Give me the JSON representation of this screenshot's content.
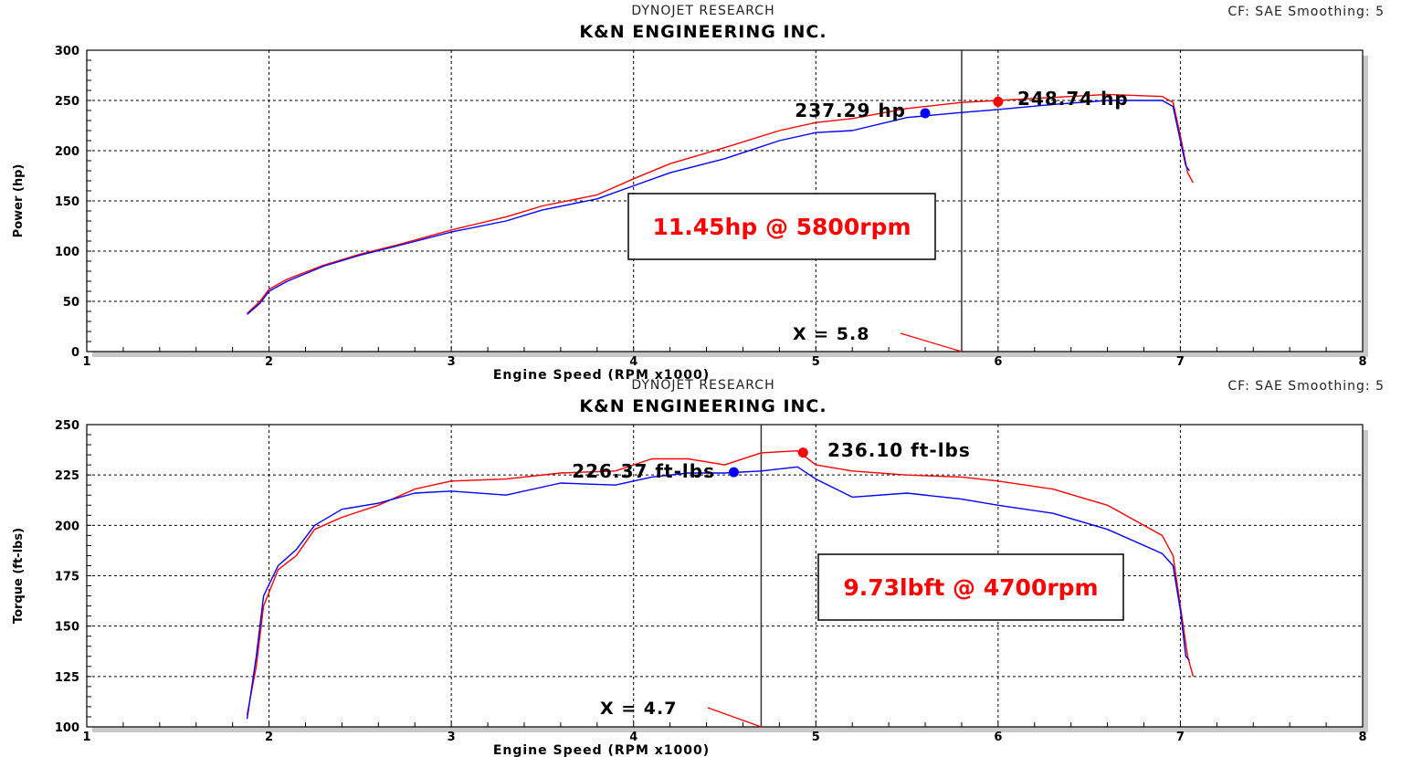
{
  "chart_data": [
    {
      "type": "line",
      "header": "DYNOJET RESEARCH",
      "title": "K&N ENGINEERING INC.",
      "settings_text": "CF: SAE   Smoothing: 5",
      "xlabel": "Engine Speed (RPM x1000)",
      "ylabel": "Power (hp)",
      "xlim": [
        1,
        8
      ],
      "ylim": [
        0,
        300
      ],
      "xticks": [
        "1",
        "2",
        "3",
        "4",
        "5",
        "6",
        "7",
        "8"
      ],
      "yticks": [
        "0",
        "50",
        "100",
        "150",
        "200",
        "250",
        "300"
      ],
      "grid": true,
      "series": [
        {
          "color": "#ff0000",
          "points": [
            [
              1.88,
              38
            ],
            [
              1.95,
              50
            ],
            [
              2.0,
              62
            ],
            [
              2.1,
              72
            ],
            [
              2.3,
              86
            ],
            [
              2.5,
              97
            ],
            [
              2.7,
              106
            ],
            [
              3.0,
              121
            ],
            [
              3.3,
              134
            ],
            [
              3.5,
              145
            ],
            [
              3.8,
              156
            ],
            [
              4.0,
              172
            ],
            [
              4.2,
              187
            ],
            [
              4.5,
              203
            ],
            [
              4.8,
              220
            ],
            [
              5.0,
              228
            ],
            [
              5.2,
              232
            ],
            [
              5.5,
              242
            ],
            [
              5.8,
              248
            ],
            [
              6.0,
              250
            ],
            [
              6.3,
              253
            ],
            [
              6.6,
              256
            ],
            [
              6.9,
              254
            ],
            [
              6.96,
              248
            ],
            [
              7.0,
              215
            ],
            [
              7.04,
              178
            ],
            [
              7.07,
              168
            ]
          ]
        },
        {
          "color": "#0000ff",
          "points": [
            [
              1.88,
              37
            ],
            [
              1.95,
              48
            ],
            [
              2.0,
              60
            ],
            [
              2.1,
              70
            ],
            [
              2.3,
              85
            ],
            [
              2.5,
              96
            ],
            [
              2.7,
              105
            ],
            [
              3.0,
              119
            ],
            [
              3.3,
              130
            ],
            [
              3.5,
              141
            ],
            [
              3.8,
              152
            ],
            [
              4.0,
              165
            ],
            [
              4.2,
              178
            ],
            [
              4.5,
              192
            ],
            [
              4.8,
              210
            ],
            [
              5.0,
              218
            ],
            [
              5.2,
              220
            ],
            [
              5.5,
              233
            ],
            [
              5.8,
              238
            ],
            [
              6.0,
              241
            ],
            [
              6.3,
              246
            ],
            [
              6.6,
              250
            ],
            [
              6.9,
              250
            ],
            [
              6.96,
              244
            ],
            [
              7.0,
              210
            ],
            [
              7.03,
              185
            ],
            [
              7.05,
              180
            ]
          ]
        }
      ],
      "markers": [
        {
          "label": "237.29 hp",
          "color": "#0000ff",
          "x": 5.6,
          "y": 237.29
        },
        {
          "label": "248.74 hp",
          "color": "#ff0000",
          "x": 6.0,
          "y": 248.74
        }
      ],
      "cursor": {
        "x": 5.8,
        "label": "X = 5.8"
      },
      "annotation": "11.45hp @ 5800rpm"
    },
    {
      "type": "line",
      "header": "DYNOJET RESEARCH",
      "title": "K&N ENGINEERING INC.",
      "settings_text": "CF: SAE   Smoothing: 5",
      "xlabel": "Engine Speed (RPM x1000)",
      "ylabel": "Torque (ft-lbs)",
      "xlim": [
        1,
        8
      ],
      "ylim": [
        100,
        250
      ],
      "xticks": [
        "1",
        "2",
        "3",
        "4",
        "5",
        "6",
        "7",
        "8"
      ],
      "yticks": [
        "100",
        "125",
        "150",
        "175",
        "200",
        "225",
        "250"
      ],
      "grid": true,
      "series": [
        {
          "color": "#ff0000",
          "points": [
            [
              1.88,
              106
            ],
            [
              1.93,
              130
            ],
            [
              1.97,
              160
            ],
            [
              2.05,
              178
            ],
            [
              2.15,
              185
            ],
            [
              2.25,
              198
            ],
            [
              2.4,
              204
            ],
            [
              2.6,
              210
            ],
            [
              2.8,
              218
            ],
            [
              3.0,
              222
            ],
            [
              3.3,
              223
            ],
            [
              3.6,
              226
            ],
            [
              3.9,
              227
            ],
            [
              4.1,
              233
            ],
            [
              4.3,
              233
            ],
            [
              4.5,
              230
            ],
            [
              4.7,
              236
            ],
            [
              4.9,
              237
            ],
            [
              5.0,
              230
            ],
            [
              5.2,
              227
            ],
            [
              5.5,
              225
            ],
            [
              5.8,
              224
            ],
            [
              6.0,
              222
            ],
            [
              6.3,
              218
            ],
            [
              6.6,
              210
            ],
            [
              6.9,
              195
            ],
            [
              6.96,
              185
            ],
            [
              7.0,
              160
            ],
            [
              7.04,
              135
            ],
            [
              7.07,
              125
            ]
          ]
        },
        {
          "color": "#0000ff",
          "points": [
            [
              1.88,
              104
            ],
            [
              1.93,
              135
            ],
            [
              1.97,
              165
            ],
            [
              2.05,
              180
            ],
            [
              2.15,
              188
            ],
            [
              2.25,
              200
            ],
            [
              2.4,
              208
            ],
            [
              2.6,
              211
            ],
            [
              2.8,
              216
            ],
            [
              3.0,
              217
            ],
            [
              3.3,
              215
            ],
            [
              3.6,
              221
            ],
            [
              3.9,
              220
            ],
            [
              4.1,
              224
            ],
            [
              4.3,
              226
            ],
            [
              4.5,
              226
            ],
            [
              4.7,
              227
            ],
            [
              4.9,
              229
            ],
            [
              5.0,
              223
            ],
            [
              5.2,
              214
            ],
            [
              5.5,
              216
            ],
            [
              5.8,
              213
            ],
            [
              6.0,
              210
            ],
            [
              6.3,
              206
            ],
            [
              6.6,
              198
            ],
            [
              6.9,
              186
            ],
            [
              6.96,
              180
            ],
            [
              7.0,
              158
            ],
            [
              7.03,
              135
            ],
            [
              7.05,
              133
            ]
          ]
        }
      ],
      "markers": [
        {
          "label": "226.37 ft-lbs",
          "color": "#0000ff",
          "x": 4.55,
          "y": 226.37
        },
        {
          "label": "236.10 ft-lbs",
          "color": "#ff0000",
          "x": 4.93,
          "y": 236.1
        }
      ],
      "cursor": {
        "x": 4.7,
        "label": "X = 4.7"
      },
      "annotation": "9.73lbft @ 4700rpm"
    }
  ]
}
